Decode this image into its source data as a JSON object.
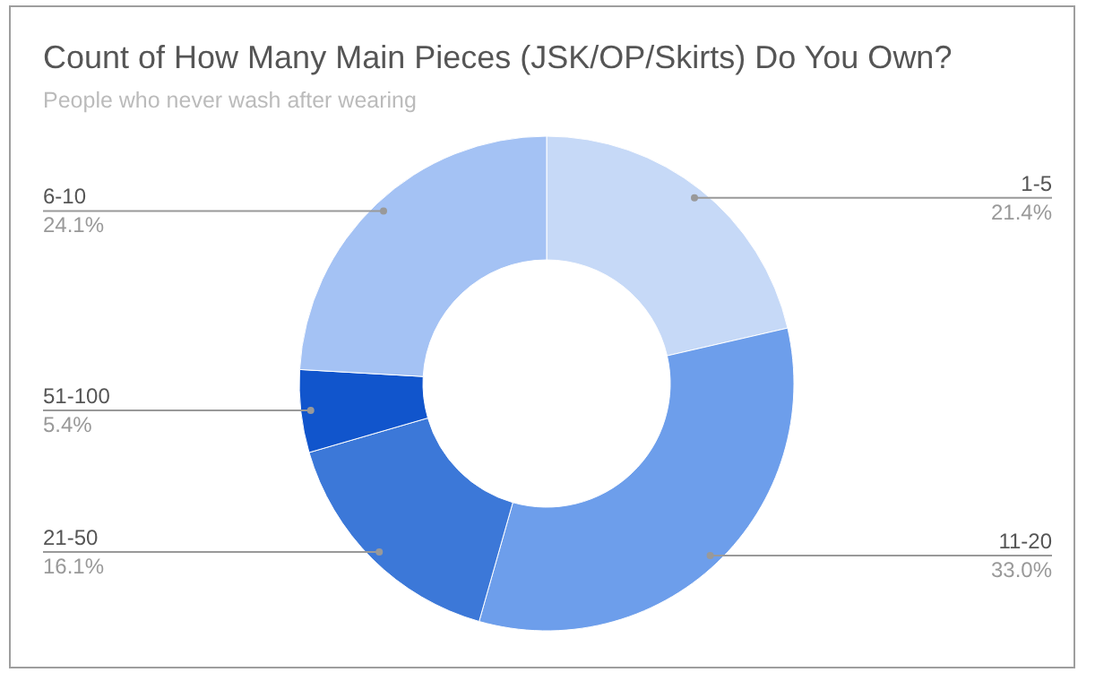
{
  "chart_data": {
    "type": "donut",
    "title": "Count of How Many Main Pieces (JSK/OP/Skirts) Do You Own?",
    "subtitle": "People who never wash after wearing",
    "categories": [
      "1-5",
      "11-20",
      "21-50",
      "51-100",
      "6-10"
    ],
    "values": [
      21.4,
      33.0,
      16.1,
      5.4,
      24.1
    ],
    "colors": [
      "#c6d9f7",
      "#6d9eeb",
      "#3c78d8",
      "#1155cc",
      "#a4c2f4"
    ],
    "value_labels": [
      "21.4%",
      "33.0%",
      "16.1%",
      "5.4%",
      "24.1%"
    ]
  }
}
